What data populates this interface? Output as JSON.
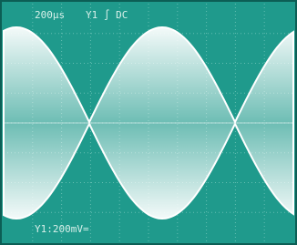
{
  "header": {
    "timebase": "200µs",
    "trigger": "Y1 ∫ DC"
  },
  "footer": {
    "scale": "Y1:200mV="
  }
}
